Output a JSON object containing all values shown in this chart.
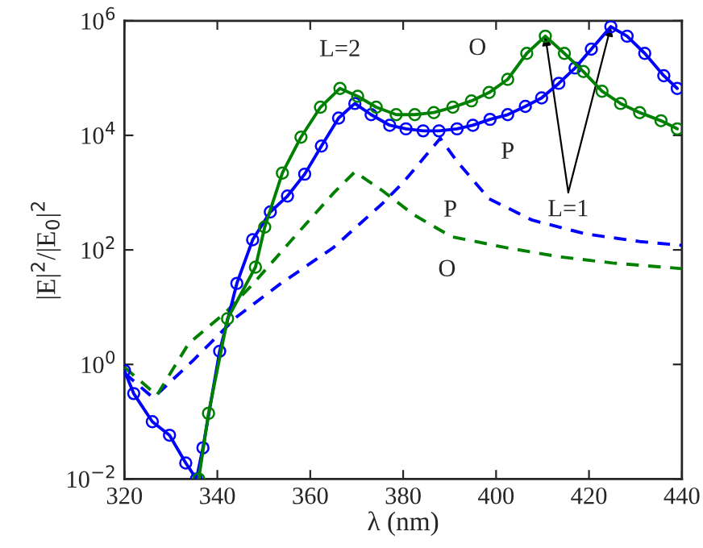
{
  "chart_data": {
    "type": "line",
    "xlabel": "λ (nm)",
    "ylabel": "|E|$^{2}$/|E$_{0}$|$^{2}$",
    "log": "y",
    "xlim": [
      320,
      440
    ],
    "xticks": [
      320,
      340,
      360,
      380,
      400,
      420,
      440
    ],
    "ylim": [
      0.01,
      1000000
    ],
    "yticks": [
      {
        "value": 0.01,
        "label": "10$^{−2}$"
      },
      {
        "value": 1,
        "label": "10$^{0}$"
      },
      {
        "value": 100,
        "label": "10$^{2}$"
      },
      {
        "value": 10000,
        "label": "10$^{4}$"
      },
      {
        "value": 1000000,
        "label": "10$^{6}$"
      }
    ],
    "grid": false,
    "legend": false,
    "series": [
      {
        "color": "#008000",
        "marker": "circle",
        "line_style": "solid",
        "x": [
          336,
          338.1,
          342.2,
          348.2,
          350.2,
          354.0,
          358.0,
          362.2,
          366.4,
          370.2,
          374.2,
          378.5,
          382.5,
          386.6,
          390.7,
          394.7,
          398.5,
          402.5,
          406.6,
          410.6,
          414.7,
          418.8,
          422.8,
          426.8,
          430.9,
          435.5,
          439
        ],
        "values": [
          0.01,
          0.14,
          6.3,
          50,
          250,
          2200,
          9300,
          31000,
          66000,
          48000,
          31000,
          23000,
          23000,
          25000,
          31000,
          40000,
          56000,
          95000,
          270000,
          540000,
          270000,
          130000,
          59000,
          36000,
          25000,
          18000,
          13000
        ]
      },
      {
        "color": "#0000ff",
        "marker": "circle",
        "line_style": "solid",
        "x": [
          320,
          322,
          326,
          329.7,
          333.2,
          335.5,
          336.9,
          340.5,
          344.2,
          347.6,
          351.4,
          355.1,
          358.8,
          362.4,
          366.1,
          369.6,
          373.1,
          377.1,
          380.6,
          384.3,
          387.7,
          391.6,
          395.0,
          398.7,
          402.5,
          406.3,
          409.8,
          413.5,
          417,
          420.5,
          424.7,
          428.2,
          432,
          436.1,
          439
        ],
        "values": [
          0.78,
          0.31,
          0.1,
          0.058,
          0.019,
          0.01,
          0.035,
          1.7,
          26,
          150,
          460,
          870,
          2100,
          6500,
          20000,
          36000,
          23000,
          15000,
          13000,
          12000,
          12000,
          13000,
          15000,
          19000,
          23000,
          32000,
          45000,
          81000,
          150000,
          320000,
          790000,
          540000,
          270000,
          110000,
          66000
        ]
      },
      {
        "color": "#008000",
        "marker": "none",
        "line_style": "dashed",
        "x": [
          320,
          327,
          333.8,
          341.9,
          347.6,
          355.7,
          365,
          369.6,
          375.4,
          382.3,
          390.4,
          402,
          413.5,
          425.1,
          440
        ],
        "values": [
          0.89,
          0.29,
          2.3,
          8.3,
          25,
          140,
          980,
          2300,
          1100,
          410,
          170,
          110,
          76,
          59,
          47
        ]
      },
      {
        "color": "#0000ff",
        "marker": "none",
        "line_style": "dashed",
        "x": [
          320,
          326.2,
          334.9,
          344.2,
          353.4,
          365,
          375.4,
          380,
          388,
          391.6,
          398.5,
          407.8,
          419.3,
          430.9,
          440
        ],
        "values": [
          0.71,
          0.26,
          1.2,
          6.8,
          25,
          110,
          630,
          1500,
          8900,
          3500,
          780,
          330,
          190,
          140,
          120
        ]
      }
    ],
    "annotations": [
      {
        "text": "L=2",
        "x": 366.4,
        "y": 66000
      },
      {
        "text": "O",
        "x": 406.6,
        "y": 270000
      },
      {
        "text": "P",
        "x": 402.5,
        "y": 23000
      },
      {
        "text": "P",
        "x": 391.6,
        "y": 3500
      },
      {
        "text": "O",
        "x": 390.4,
        "y": 170
      },
      {
        "text": "L=1",
        "x": 424.7,
        "y": 790000
      }
    ]
  }
}
